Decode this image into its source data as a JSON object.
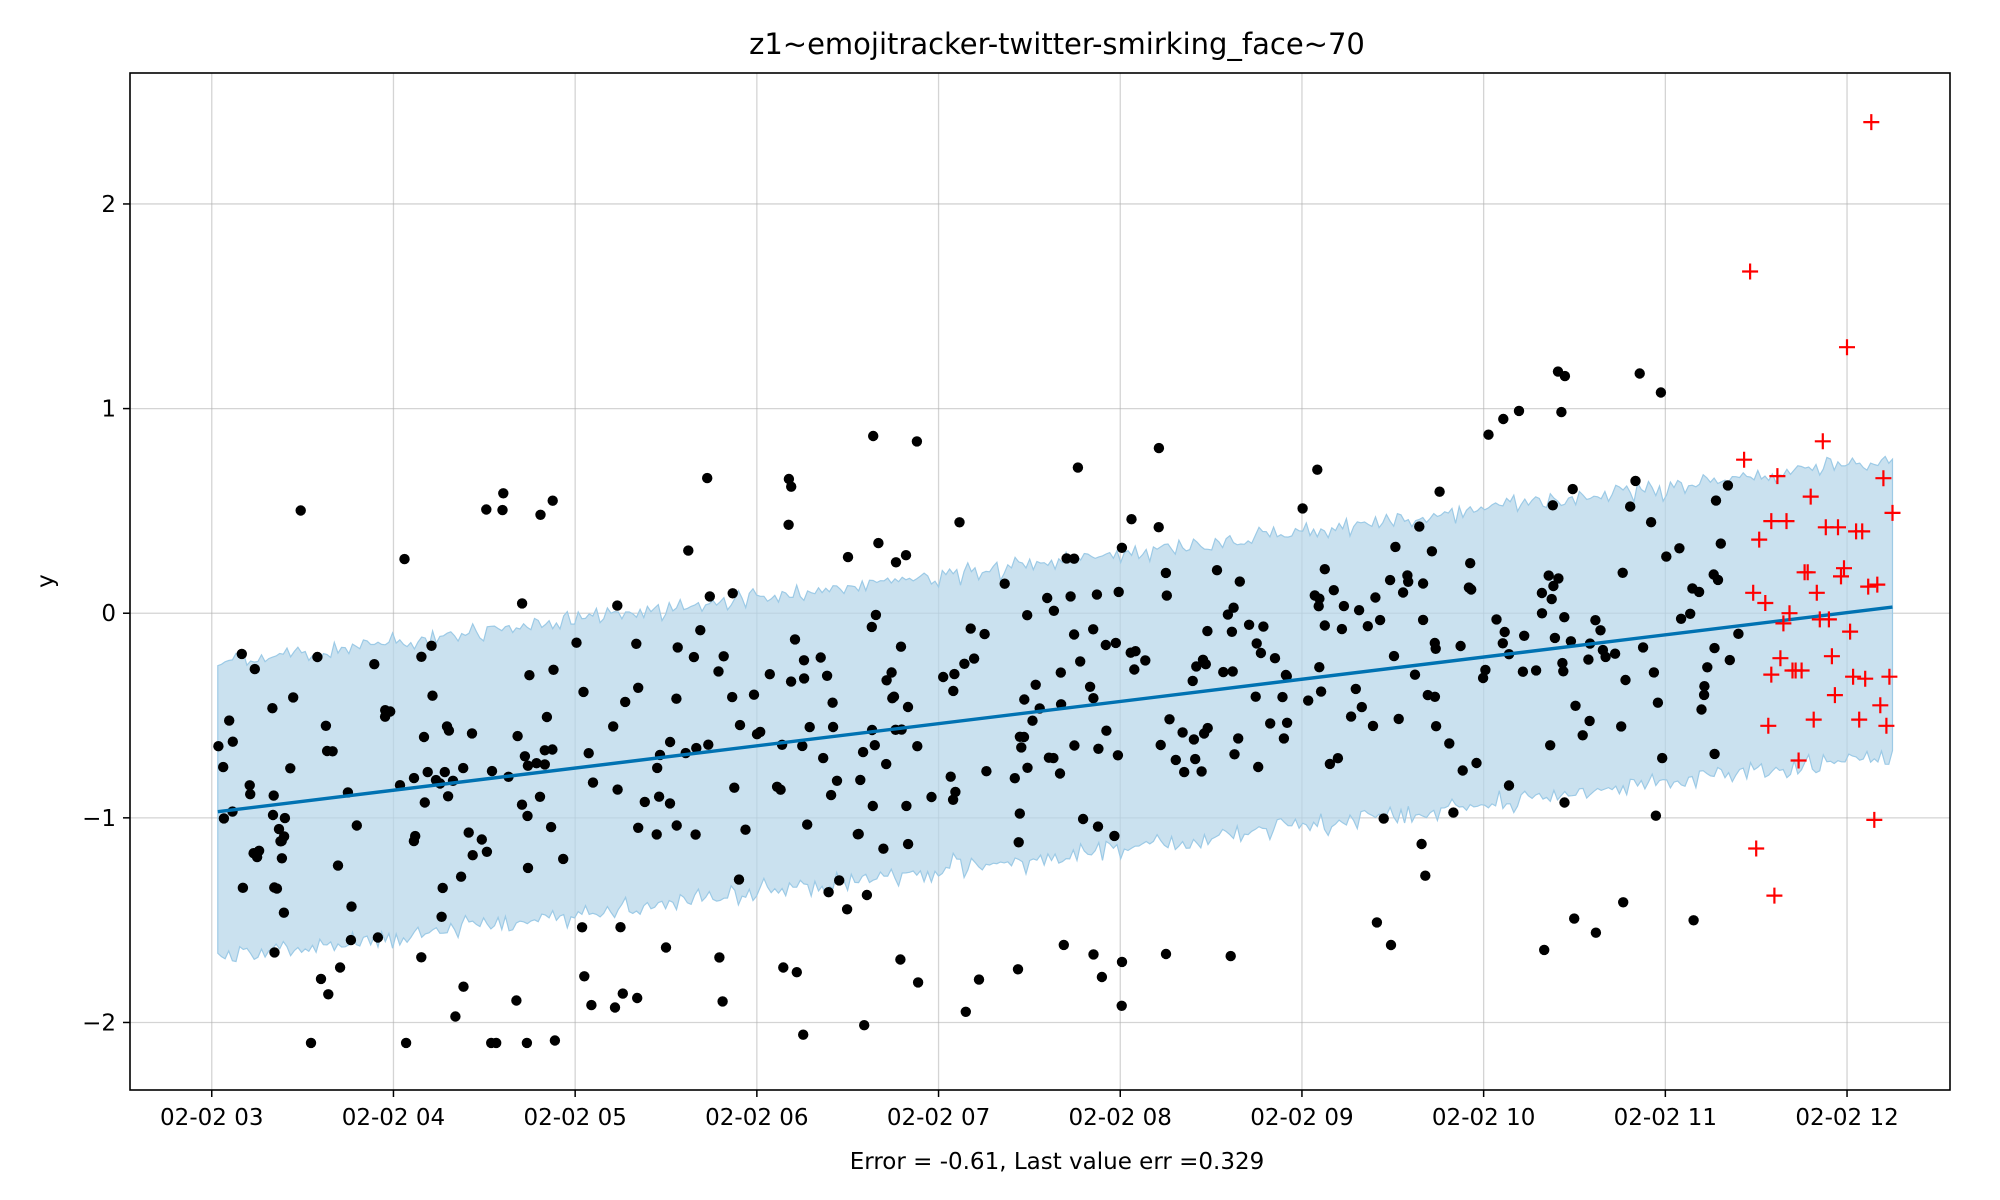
{
  "chart_data": {
    "type": "scatter",
    "title": "z1~emojitracker-twitter-smirking_face~70",
    "xlabel": "Error = -0.61, Last value err =0.329",
    "ylabel": "y",
    "x_ticks": [
      "02-02 03",
      "02-02 04",
      "02-02 05",
      "02-02 06",
      "02-02 07",
      "02-02 08",
      "02-02 09",
      "02-02 10",
      "02-02 11",
      "02-02 12"
    ],
    "y_ticks": [
      "2",
      "1",
      "0",
      "−1",
      "−2"
    ],
    "xlim": [
      "02-02 02:33",
      "02-02 12:34"
    ],
    "ylim": [
      -2.33,
      2.64
    ],
    "grid": true,
    "trend": {
      "x_start": "02-02 03:02",
      "y_start": -0.97,
      "x_end": "02-02 12:15",
      "y_end": 0.03
    },
    "band_half_width": 0.72,
    "colors": {
      "points": "#000000",
      "trend": "#0072b2",
      "band": "#b5d5e9",
      "band_edge": "#9ccae6",
      "test": "#ff0000"
    },
    "history_points": {
      "series_name": "",
      "x_start": "02-02 03:02",
      "x_end": "02-02 11:25",
      "count": 460
    },
    "test_points": {
      "series_name": "",
      "x": [
        "02-02 11:26",
        "02-02 11:28",
        "02-02 11:29",
        "02-02 11:30",
        "02-02 11:31",
        "02-02 11:33",
        "02-02 11:34",
        "02-02 11:35",
        "02-02 11:35",
        "02-02 11:36",
        "02-02 11:37",
        "02-02 11:38",
        "02-02 11:39",
        "02-02 11:40",
        "02-02 11:41",
        "02-02 11:42",
        "02-02 11:43",
        "02-02 11:44",
        "02-02 11:45",
        "02-02 11:46",
        "02-02 11:47",
        "02-02 11:48",
        "02-02 11:49",
        "02-02 11:50",
        "02-02 11:51",
        "02-02 11:52",
        "02-02 11:53",
        "02-02 11:54",
        "02-02 11:55",
        "02-02 11:56",
        "02-02 11:57",
        "02-02 11:58",
        "02-02 11:59",
        "02-02 12:00",
        "02-02 12:01",
        "02-02 12:02",
        "02-02 12:03",
        "02-02 12:04",
        "02-02 12:05",
        "02-02 12:06",
        "02-02 12:07",
        "02-02 12:08",
        "02-02 12:09",
        "02-02 12:10",
        "02-02 12:11",
        "02-02 12:12",
        "02-02 12:13",
        "02-02 12:14",
        "02-02 12:15"
      ],
      "y": [
        0.75,
        1.67,
        0.1,
        -1.15,
        0.36,
        0.05,
        -0.55,
        -0.3,
        0.45,
        -1.38,
        0.67,
        -0.22,
        -0.05,
        0.45,
        0.0,
        -0.28,
        -0.28,
        -0.72,
        -0.28,
        0.2,
        0.2,
        0.57,
        -0.52,
        0.1,
        -0.03,
        0.84,
        0.42,
        -0.03,
        -0.21,
        -0.4,
        0.42,
        0.18,
        0.22,
        1.3,
        -0.09,
        -0.31,
        0.4,
        -0.52,
        0.4,
        -0.32,
        0.13,
        2.4,
        -1.01,
        0.14,
        -0.45,
        0.66,
        -0.55,
        -0.31,
        0.49
      ]
    }
  }
}
